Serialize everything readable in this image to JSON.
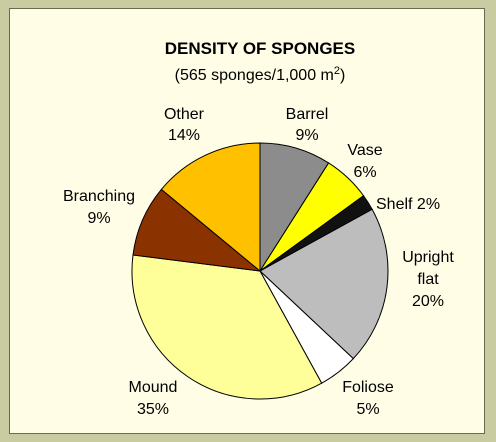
{
  "chart_data": {
    "type": "pie",
    "title": "DENSITY OF SPONGES",
    "subtitle_prefix": "(565 sponges/1,000 m",
    "subtitle_sup": "2",
    "subtitle_suffix": ")",
    "slices": [
      {
        "name": "Barrel",
        "value": 9,
        "percent_label": "9%",
        "color": "#8c8c8c"
      },
      {
        "name": "Vase",
        "value": 6,
        "percent_label": "6%",
        "color": "#ffff00"
      },
      {
        "name": "Shelf",
        "value": 2,
        "percent_label": "2%",
        "color": "#111111"
      },
      {
        "name": "Upright flat",
        "value": 20,
        "percent_label": "20%",
        "color": "#bdbdbd"
      },
      {
        "name": "Foliose",
        "value": 5,
        "percent_label": "5%",
        "color": "#ffffff"
      },
      {
        "name": "Mound",
        "value": 35,
        "percent_label": "35%",
        "color": "#ffff99"
      },
      {
        "name": "Branching",
        "value": 9,
        "percent_label": "9%",
        "color": "#8b3300"
      },
      {
        "name": "Other",
        "value": 14,
        "percent_label": "14%",
        "color": "#ffc000"
      }
    ],
    "labels": {
      "barrel": {
        "name": "Barrel",
        "pct": "9%"
      },
      "vase": {
        "name": "Vase",
        "pct": "6%"
      },
      "shelf": {
        "text": "Shelf 2%"
      },
      "upright": {
        "line1": "Upright",
        "line2": "flat",
        "pct": "20%"
      },
      "foliose": {
        "name": "Foliose",
        "pct": "5%"
      },
      "mound": {
        "name": "Mound",
        "pct": "35%"
      },
      "branching": {
        "name": "Branching",
        "pct": "9%"
      },
      "other": {
        "name": "Other",
        "pct": "14%"
      }
    }
  }
}
